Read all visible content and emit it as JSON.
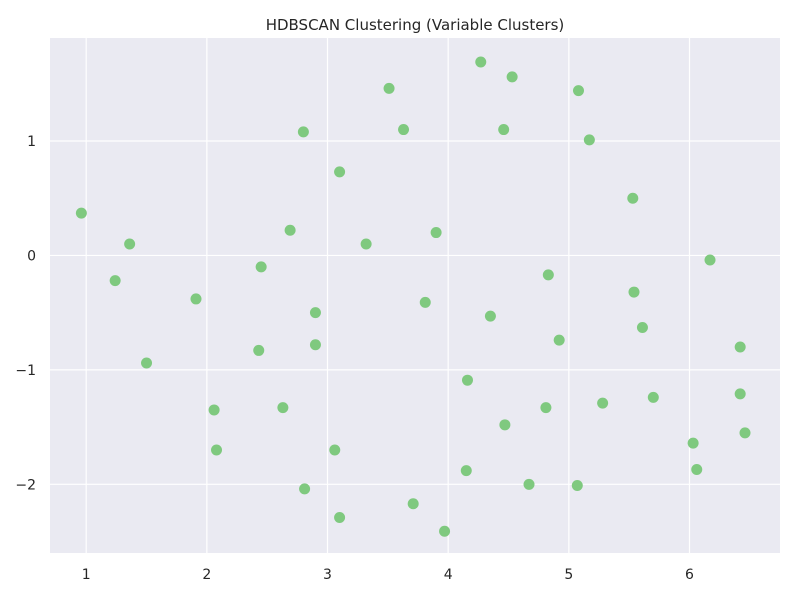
{
  "chart_data": {
    "type": "scatter",
    "title": "HDBSCAN Clustering (Variable Clusters)",
    "xlabel": "",
    "ylabel": "",
    "xlim": [
      0.7,
      6.75
    ],
    "ylim": [
      -2.6,
      1.9
    ],
    "xticks": [
      1,
      2,
      3,
      4,
      5,
      6
    ],
    "yticks": [
      1,
      0,
      -1,
      -2
    ],
    "xtick_labels": [
      "1",
      "2",
      "3",
      "4",
      "5",
      "6"
    ],
    "ytick_labels": [
      "1",
      "0",
      "−1",
      "−2"
    ],
    "grid": true,
    "background_color": "#eaeaf2",
    "grid_color": "#ffffff",
    "point_color": "#7fc97f",
    "points": [
      {
        "x": 0.96,
        "y": 0.37
      },
      {
        "x": 1.24,
        "y": -0.22
      },
      {
        "x": 1.36,
        "y": 0.1
      },
      {
        "x": 1.5,
        "y": -0.94
      },
      {
        "x": 1.91,
        "y": -0.38
      },
      {
        "x": 2.06,
        "y": -1.35
      },
      {
        "x": 2.08,
        "y": -1.7
      },
      {
        "x": 2.43,
        "y": -0.83
      },
      {
        "x": 2.45,
        "y": -0.1
      },
      {
        "x": 2.63,
        "y": -1.33
      },
      {
        "x": 2.69,
        "y": 0.22
      },
      {
        "x": 2.8,
        "y": 1.08
      },
      {
        "x": 2.81,
        "y": -2.04
      },
      {
        "x": 2.9,
        "y": -0.5
      },
      {
        "x": 2.9,
        "y": -0.78
      },
      {
        "x": 3.06,
        "y": -1.7
      },
      {
        "x": 3.1,
        "y": 0.73
      },
      {
        "x": 3.1,
        "y": -2.29
      },
      {
        "x": 3.32,
        "y": 0.1
      },
      {
        "x": 3.51,
        "y": 1.46
      },
      {
        "x": 3.63,
        "y": 1.1
      },
      {
        "x": 3.71,
        "y": -2.17
      },
      {
        "x": 3.81,
        "y": -0.41
      },
      {
        "x": 3.9,
        "y": 0.2
      },
      {
        "x": 3.97,
        "y": -2.41
      },
      {
        "x": 4.15,
        "y": -1.88
      },
      {
        "x": 4.16,
        "y": -1.09
      },
      {
        "x": 4.27,
        "y": 1.69
      },
      {
        "x": 4.35,
        "y": -0.53
      },
      {
        "x": 4.46,
        "y": 1.1
      },
      {
        "x": 4.47,
        "y": -1.48
      },
      {
        "x": 4.53,
        "y": 1.56
      },
      {
        "x": 4.67,
        "y": -2.0
      },
      {
        "x": 4.81,
        "y": -1.33
      },
      {
        "x": 4.83,
        "y": -0.17
      },
      {
        "x": 4.92,
        "y": -0.74
      },
      {
        "x": 5.07,
        "y": -2.01
      },
      {
        "x": 5.08,
        "y": 1.44
      },
      {
        "x": 5.17,
        "y": 1.01
      },
      {
        "x": 5.28,
        "y": -1.29
      },
      {
        "x": 5.53,
        "y": 0.5
      },
      {
        "x": 5.54,
        "y": -0.32
      },
      {
        "x": 5.61,
        "y": -0.63
      },
      {
        "x": 5.7,
        "y": -1.24
      },
      {
        "x": 6.03,
        "y": -1.64
      },
      {
        "x": 6.06,
        "y": -1.87
      },
      {
        "x": 6.17,
        "y": -0.04
      },
      {
        "x": 6.42,
        "y": -0.8
      },
      {
        "x": 6.42,
        "y": -1.21
      },
      {
        "x": 6.46,
        "y": -1.55
      }
    ]
  }
}
